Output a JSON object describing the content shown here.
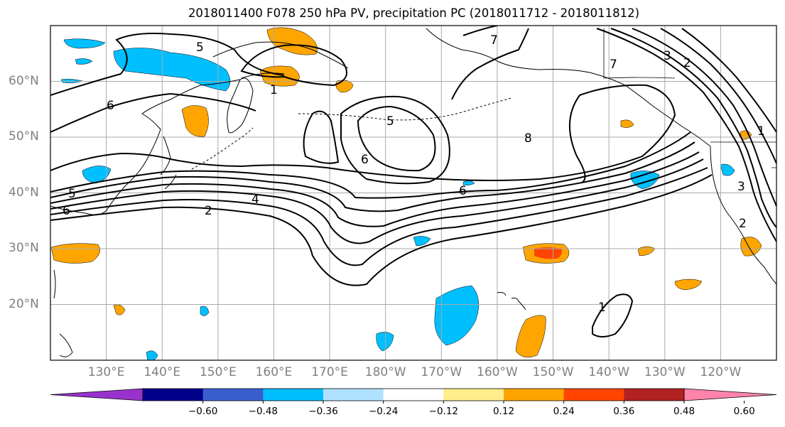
{
  "title": "2018011400 F078 250 hPa PV, precipitation PC (2018011712 - 2018011812)",
  "map": {
    "lat_labels": [
      {
        "text": "60°N",
        "lat": 60
      },
      {
        "text": "50°N",
        "lat": 50
      },
      {
        "text": "40°N",
        "lat": 40
      },
      {
        "text": "30°N",
        "lat": 30
      },
      {
        "text": "20°N",
        "lat": 20
      }
    ],
    "lon_labels": [
      {
        "text": "130°E",
        "lon": 130
      },
      {
        "text": "140°E",
        "lon": 140
      },
      {
        "text": "150°E",
        "lon": 150
      },
      {
        "text": "160°E",
        "lon": 160
      },
      {
        "text": "170°E",
        "lon": 170
      },
      {
        "text": "180°W",
        "lon": 180
      },
      {
        "text": "170°W",
        "lon": 190
      },
      {
        "text": "160°W",
        "lon": 200
      },
      {
        "text": "150°W",
        "lon": 210
      },
      {
        "text": "140°W",
        "lon": 220
      },
      {
        "text": "130°W",
        "lon": 230
      },
      {
        "text": "120°W",
        "lon": 240
      }
    ],
    "extent": {
      "lon_min": 120.0,
      "lon_max": 250.0,
      "lat_min": 10.0,
      "lat_max": 70.0
    },
    "contour_labels": [
      "5",
      "6",
      "7",
      "1",
      "3",
      "2",
      "8",
      "5",
      "6",
      "6",
      "4",
      "2",
      "5",
      "6",
      "1",
      "3",
      "2",
      "1",
      "7"
    ]
  },
  "colorbar": {
    "ticks": [
      "−0.60",
      "−0.48",
      "−0.36",
      "−0.24",
      "−0.12",
      "0.12",
      "0.24",
      "0.36",
      "0.48",
      "0.60"
    ],
    "colors": {
      "under": "#9932cc",
      "bins": [
        "#00008b",
        "#3a5fcd",
        "#00bfff",
        "#b0e2ff",
        "#ffffff",
        "#ffec8b",
        "#ffa500",
        "#ff4500",
        "#b22222"
      ],
      "over": "#ff83aa"
    }
  },
  "colors": {
    "contour": "#000000",
    "grid": "#a9a9a9",
    "label_gray": "#7f7f7f"
  }
}
